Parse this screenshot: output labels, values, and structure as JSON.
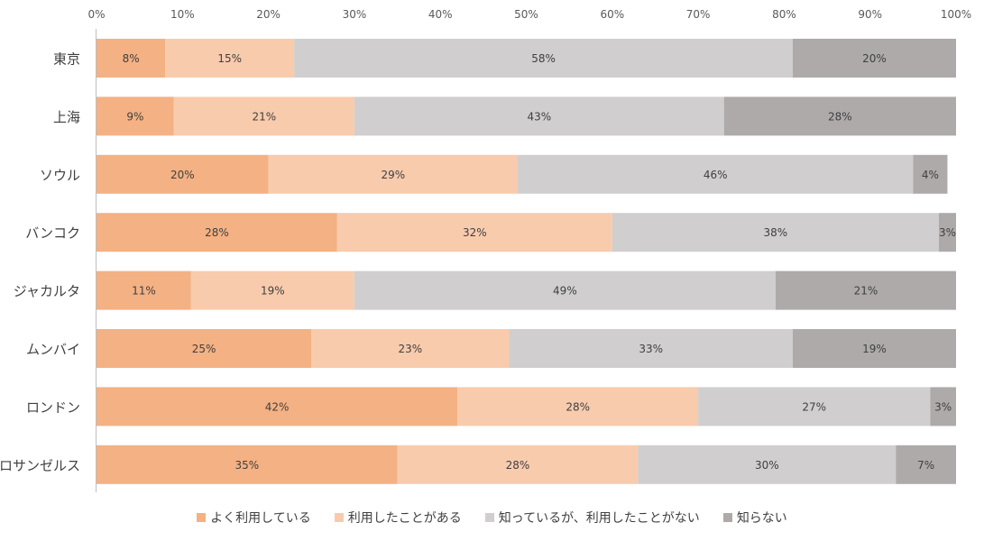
{
  "chart_data": {
    "type": "bar",
    "orientation": "horizontal",
    "stacked": "percent",
    "title": "",
    "xlabel": "",
    "ylabel": "",
    "xlim": [
      0,
      100
    ],
    "x_ticks": [
      "0%",
      "10%",
      "20%",
      "30%",
      "40%",
      "50%",
      "60%",
      "70%",
      "80%",
      "90%",
      "100%"
    ],
    "x_axis_position": "top",
    "grid": false,
    "legend_position": "bottom",
    "categories": [
      "東京",
      "上海",
      "ソウル",
      "バンコク",
      "ジャカルタ",
      "ムンバイ",
      "ロンドン",
      "ロサンゼルス"
    ],
    "series": [
      {
        "name": "よく利用している",
        "color": "#F4B183",
        "values": [
          8,
          9,
          20,
          28,
          11,
          25,
          42,
          35
        ],
        "labels": [
          "8%",
          "9%",
          "20%",
          "28%",
          "11%",
          "25%",
          "42%",
          "35%"
        ]
      },
      {
        "name": "利用したことがある",
        "color": "#F8CBAD",
        "values": [
          15,
          21,
          29,
          32,
          19,
          23,
          28,
          28
        ],
        "labels": [
          "15%",
          "21%",
          "29%",
          "32%",
          "19%",
          "23%",
          "28%",
          "28%"
        ]
      },
      {
        "name": "知っているが、利用したことがない",
        "color": "#D0CECE",
        "values": [
          58,
          43,
          46,
          38,
          49,
          33,
          27,
          30
        ],
        "labels": [
          "58%",
          "43%",
          "46%",
          "38%",
          "49%",
          "33%",
          "27%",
          "30%"
        ]
      },
      {
        "name": "知らない",
        "color": "#AEAAAA",
        "values": [
          20,
          28,
          4,
          3,
          21,
          19,
          3,
          7
        ],
        "labels": [
          "20%",
          "28%",
          "4%",
          "3%",
          "21%",
          "19%",
          "3%",
          "7%"
        ]
      }
    ]
  }
}
